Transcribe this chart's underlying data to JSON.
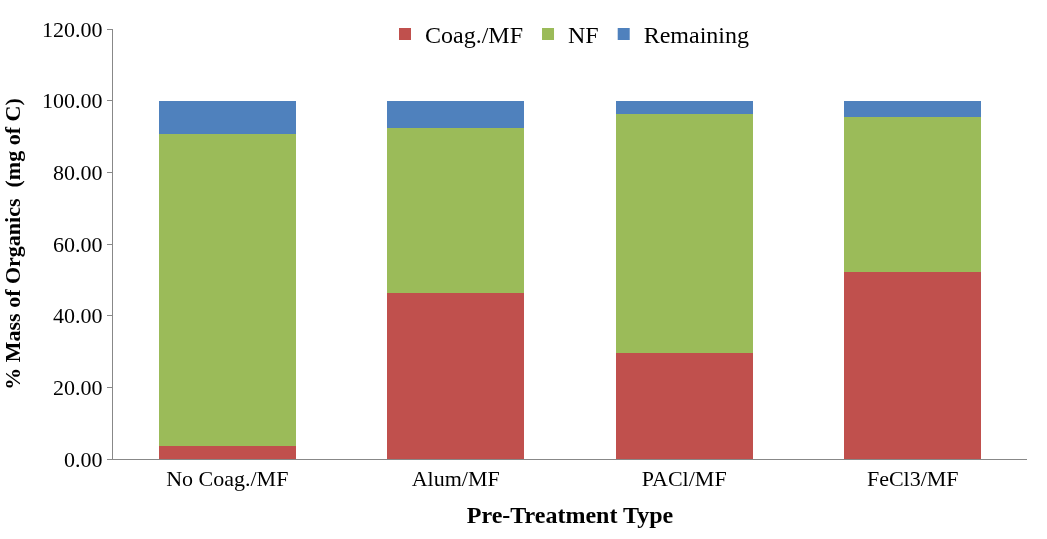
{
  "chart_data": {
    "type": "bar",
    "stacked": true,
    "xlabel": "Pre-Treatment Type",
    "ylabel": "% Mass of Organics  (mg of C)",
    "categories": [
      "No Coag./MF",
      "Alum/MF",
      "PACl/MF",
      "FeCl3/MF"
    ],
    "series": [
      {
        "name": "Coag./MF",
        "color": "#c0504d",
        "values": [
          3.5,
          46.4,
          29.7,
          52.2
        ]
      },
      {
        "name": "NF",
        "color": "#9bbb59",
        "values": [
          87.3,
          46.1,
          66.6,
          43.2
        ]
      },
      {
        "name": "Remaining",
        "color": "#4f81bd",
        "values": [
          9.2,
          7.5,
          3.7,
          4.6
        ]
      }
    ],
    "ylim": [
      0,
      120
    ],
    "yticks": [
      {
        "value": 0,
        "label": "0.00"
      },
      {
        "value": 20,
        "label": "20.00"
      },
      {
        "value": 40,
        "label": "40.00"
      },
      {
        "value": 60,
        "label": "60.00"
      },
      {
        "value": 80,
        "label": "80.00"
      },
      {
        "value": 100,
        "label": "100.00"
      },
      {
        "value": 120,
        "label": "120.00"
      }
    ],
    "legend": "top"
  }
}
